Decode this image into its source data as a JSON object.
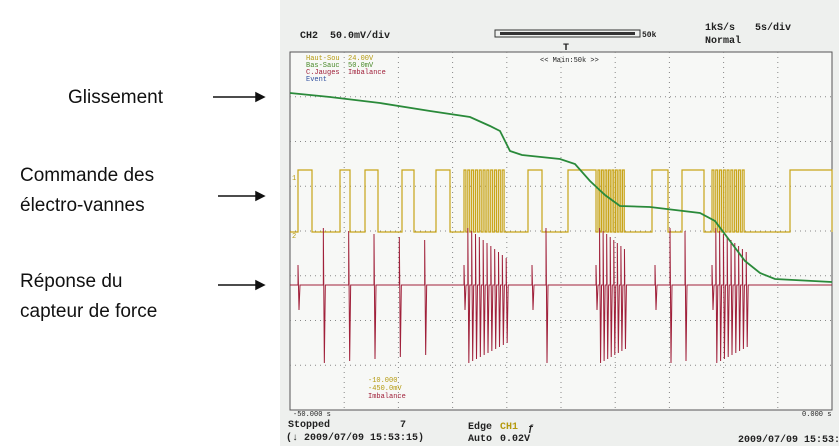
{
  "labels": [
    "Glissement",
    "Commande des",
    "électro-vannes",
    "Réponse du",
    "capteur de force"
  ],
  "scope": {
    "header": {
      "channel": "CH2",
      "scale": "50.0mV/div",
      "record": "50k",
      "rate": "1kS/s",
      "timebase": "5s/div",
      "mode": "Normal",
      "zoom": "<< Main:50k >>",
      "trigger_mark": "T"
    },
    "legend": [
      "Haut-Sou",
      "Bas-Sauc",
      "C.Jauges",
      "Event"
    ],
    "legend_values": [
      "24.00V",
      "50.0mV",
      "Imbalance"
    ],
    "markers": {
      "ch1": "1",
      "ch2": "2"
    },
    "offsets": [
      "-10.000",
      "-450.0mV",
      "Imbalance"
    ],
    "time_start": "-50.000 s",
    "time_end": "0.000 s",
    "footer": {
      "status": "Stopped",
      "count": "7",
      "stamp": "(↓ 2009/07/09 15:53:15)",
      "trigger": "Edge",
      "source": "CH1",
      "slope": "ƒ",
      "auto": "Auto",
      "level": "0.02V",
      "date": "2009/07/09 15:53:1"
    }
  }
}
